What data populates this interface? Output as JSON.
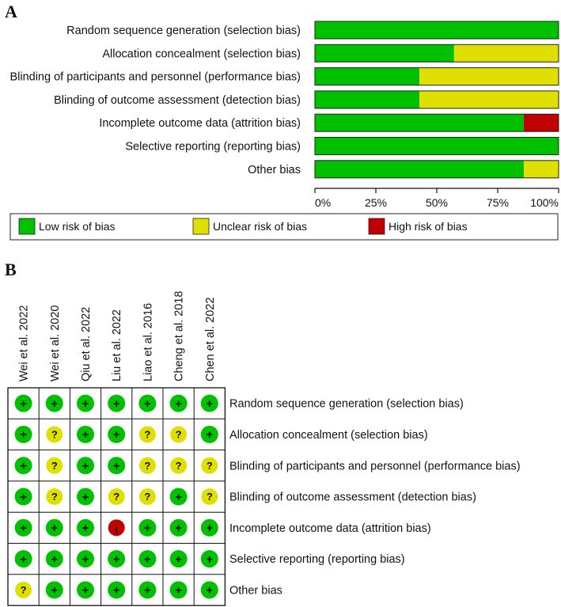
{
  "panels": {
    "a": "A",
    "b": "B"
  },
  "colors": {
    "low": "#00c000",
    "unclear": "#e0e000",
    "high": "#c00000"
  },
  "chart_data": [
    {
      "type": "bar",
      "orientation": "horizontal",
      "stacked": true,
      "categories": [
        "Random sequence generation (selection bias)",
        "Allocation concealment (selection bias)",
        "Blinding of participants and personnel (performance bias)",
        "Blinding of outcome assessment (detection bias)",
        "Incomplete outcome data (attrition bias)",
        "Selective reporting (reporting bias)",
        "Other bias"
      ],
      "series": [
        {
          "name": "Low risk of bias",
          "key": "low",
          "values": [
            100,
            57.1,
            42.9,
            42.9,
            85.7,
            100,
            85.7
          ]
        },
        {
          "name": "Unclear risk of bias",
          "key": "unclear",
          "values": [
            0,
            42.9,
            57.1,
            57.1,
            0,
            0,
            14.3
          ]
        },
        {
          "name": "High risk of bias",
          "key": "high",
          "values": [
            0,
            0,
            0,
            0,
            14.3,
            0,
            0
          ]
        }
      ],
      "xlim": [
        0,
        100
      ],
      "xticks": [
        "0%",
        "25%",
        "50%",
        "75%",
        "100%"
      ],
      "legend": [
        "Low risk of bias",
        "Unclear risk of bias",
        "High risk of bias"
      ],
      "legend_position": "bottom"
    },
    {
      "type": "table",
      "studies": [
        "Wei et al. 2022",
        "Wei et al. 2020",
        "Qiu et al. 2022",
        "Liu et al. 2022",
        "Liao et al. 2016",
        "Cheng et al. 2018",
        "Chen et al. 2022"
      ],
      "domains": [
        "Random sequence generation (selection bias)",
        "Allocation concealment (selection bias)",
        "Blinding of participants and personnel (performance bias)",
        "Blinding of outcome assessment (detection bias)",
        "Incomplete outcome data (attrition bias)",
        "Selective reporting (reporting bias)",
        "Other bias"
      ],
      "symbols": {
        "low": "+",
        "unclear": "?",
        "high": "-"
      },
      "judgements": [
        [
          "low",
          "low",
          "low",
          "low",
          "low",
          "low",
          "low"
        ],
        [
          "low",
          "unclear",
          "low",
          "low",
          "unclear",
          "unclear",
          "low"
        ],
        [
          "low",
          "unclear",
          "low",
          "low",
          "unclear",
          "unclear",
          "unclear"
        ],
        [
          "low",
          "unclear",
          "low",
          "unclear",
          "unclear",
          "low",
          "unclear"
        ],
        [
          "low",
          "low",
          "low",
          "high",
          "low",
          "low",
          "low"
        ],
        [
          "low",
          "low",
          "low",
          "low",
          "low",
          "low",
          "low"
        ],
        [
          "unclear",
          "low",
          "low",
          "low",
          "low",
          "low",
          "low"
        ]
      ]
    }
  ]
}
